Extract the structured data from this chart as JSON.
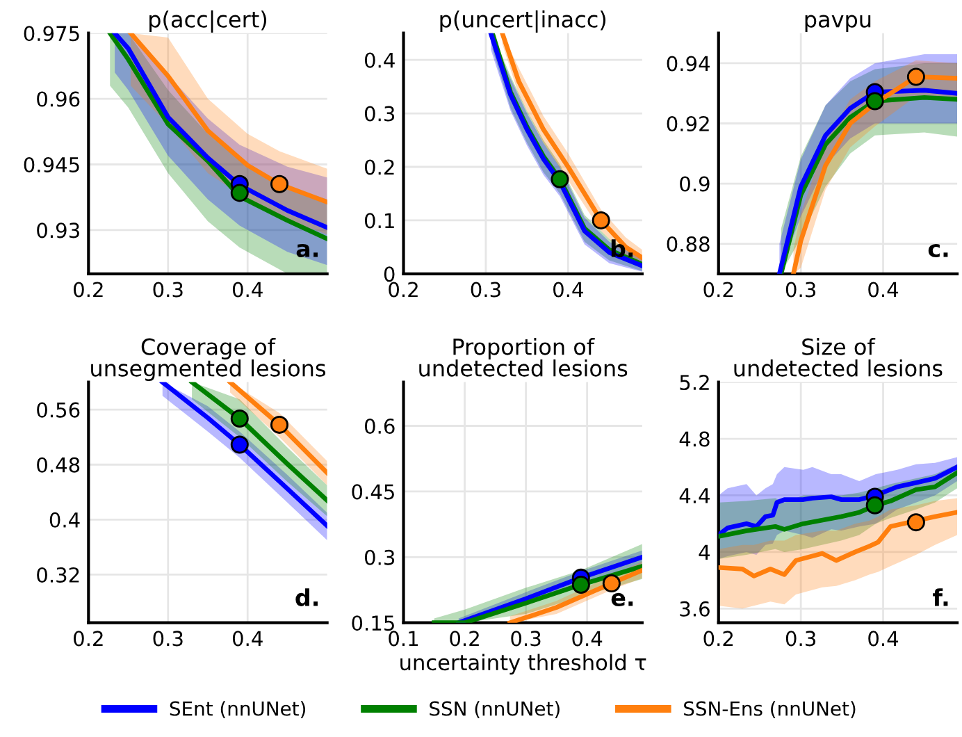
{
  "chart_data": [
    {
      "type": "line",
      "title": "p(acc|cert)",
      "xlim": [
        0.2,
        0.5
      ],
      "ylim": [
        0.92,
        0.975
      ],
      "xticks": [
        0.2,
        0.3,
        0.4
      ],
      "yticks": [
        0.93,
        0.945,
        0.96,
        0.975
      ],
      "grid": true,
      "annotations": [
        "a."
      ],
      "series": [
        {
          "color": "#008000",
          "x": [
            0.227,
            0.25,
            0.3,
            0.35,
            0.39,
            0.45,
            0.5
          ],
          "values": [
            0.975,
            0.969,
            0.9542,
            0.9458,
            0.9377,
            0.9322,
            0.928
          ],
          "lower": [
            0.963,
            0.958,
            0.943,
            0.932,
            0.926,
            0.92,
            0.92
          ],
          "upper": [
            0.975,
            0.975,
            0.962,
            0.952,
            0.946,
            0.94,
            0.937
          ]
        },
        {
          "color": "#0000ff",
          "x": [
            0.233,
            0.25,
            0.3,
            0.35,
            0.39,
            0.45,
            0.5
          ],
          "values": [
            0.975,
            0.9715,
            0.9558,
            0.9465,
            0.9403,
            0.9345,
            0.9306
          ],
          "lower": [
            0.966,
            0.962,
            0.947,
            0.937,
            0.931,
            0.925,
            0.922
          ],
          "upper": [
            0.975,
            0.975,
            0.9655,
            0.9555,
            0.9495,
            0.9445,
            0.942
          ]
        },
        {
          "color": "#ff7f0e",
          "x": [
            0.253,
            0.3,
            0.35,
            0.4,
            0.44,
            0.5
          ],
          "values": [
            0.975,
            0.9652,
            0.9527,
            0.9448,
            0.9405,
            0.9364
          ],
          "lower": [
            0.963,
            0.954,
            0.943,
            0.937,
            0.933,
            0.929
          ],
          "upper": [
            0.975,
            0.974,
            0.96,
            0.952,
            0.948,
            0.944
          ]
        },
        {
          "type": "scatter",
          "marker": "circle",
          "color": "#0000ff",
          "x": [
            0.39
          ],
          "values": [
            0.9405
          ]
        },
        {
          "type": "scatter",
          "marker": "circle",
          "color": "#008000",
          "x": [
            0.39
          ],
          "values": [
            0.9385
          ]
        },
        {
          "type": "scatter",
          "marker": "circle",
          "color": "#ff7f0e",
          "x": [
            0.44
          ],
          "values": [
            0.9405
          ]
        }
      ]
    },
    {
      "type": "line",
      "title": "p(uncert|inacc)",
      "xlim": [
        0.2,
        0.49
      ],
      "ylim": [
        0,
        0.45
      ],
      "xticks": [
        0.2,
        0.3,
        0.4
      ],
      "yticks": [
        0,
        0.1,
        0.2,
        0.3,
        0.4
      ],
      "grid": true,
      "annotations": [
        "b."
      ],
      "series": [
        {
          "color": "#008000",
          "x": [
            0.308,
            0.33,
            0.35,
            0.37,
            0.39,
            0.42,
            0.45,
            0.49
          ],
          "values": [
            0.45,
            0.34,
            0.275,
            0.22,
            0.177,
            0.085,
            0.045,
            0.018
          ],
          "lower": [
            0.42,
            0.31,
            0.245,
            0.19,
            0.15,
            0.06,
            0.025,
            0.005
          ],
          "upper": [
            0.45,
            0.37,
            0.305,
            0.25,
            0.205,
            0.11,
            0.065,
            0.03
          ]
        },
        {
          "color": "#0000ff",
          "x": [
            0.306,
            0.33,
            0.35,
            0.37,
            0.39,
            0.42,
            0.45,
            0.49
          ],
          "values": [
            0.45,
            0.335,
            0.27,
            0.215,
            0.172,
            0.08,
            0.04,
            0.015
          ],
          "lower": [
            0.42,
            0.305,
            0.24,
            0.185,
            0.145,
            0.055,
            0.02,
            0.004
          ],
          "upper": [
            0.45,
            0.365,
            0.3,
            0.245,
            0.2,
            0.105,
            0.06,
            0.028
          ]
        },
        {
          "color": "#ff7f0e",
          "x": [
            0.32,
            0.34,
            0.37,
            0.4,
            0.44,
            0.47,
            0.49
          ],
          "values": [
            0.45,
            0.36,
            0.27,
            0.2,
            0.1,
            0.05,
            0.03
          ],
          "lower": [
            0.43,
            0.335,
            0.245,
            0.175,
            0.08,
            0.035,
            0.018
          ],
          "upper": [
            0.45,
            0.385,
            0.295,
            0.225,
            0.12,
            0.068,
            0.045
          ]
        },
        {
          "type": "scatter",
          "marker": "circle",
          "color": "#008000",
          "x": [
            0.39
          ],
          "values": [
            0.177
          ]
        },
        {
          "type": "scatter",
          "marker": "circle",
          "color": "#ff7f0e",
          "x": [
            0.44
          ],
          "values": [
            0.1
          ]
        }
      ]
    },
    {
      "type": "line",
      "title": "pavpu",
      "xlim": [
        0.2,
        0.49
      ],
      "ylim": [
        0.87,
        0.95
      ],
      "xticks": [
        0.2,
        0.3,
        0.4
      ],
      "yticks": [
        0.88,
        0.9,
        0.92,
        0.94
      ],
      "grid": true,
      "annotations": [
        "c."
      ],
      "series": [
        {
          "color": "#008000",
          "x": [
            0.276,
            0.3,
            0.33,
            0.36,
            0.39,
            0.45,
            0.49
          ],
          "values": [
            0.87,
            0.8962,
            0.913,
            0.922,
            0.9274,
            0.9286,
            0.928
          ],
          "lower": [
            0.87,
            0.882,
            0.899,
            0.91,
            0.916,
            0.917,
            0.9156
          ],
          "upper": [
            0.885,
            0.909,
            0.926,
            0.934,
            0.938,
            0.94,
            0.94
          ]
        },
        {
          "color": "#0000ff",
          "x": [
            0.274,
            0.3,
            0.33,
            0.36,
            0.39,
            0.45,
            0.49
          ],
          "values": [
            0.87,
            0.899,
            0.916,
            0.925,
            0.9304,
            0.931,
            0.93
          ],
          "lower": [
            0.87,
            0.889,
            0.906,
            0.915,
            0.92,
            0.92,
            0.92
          ],
          "upper": [
            0.88,
            0.908,
            0.926,
            0.935,
            0.94,
            0.943,
            0.943
          ]
        },
        {
          "color": "#ff7f0e",
          "x": [
            0.291,
            0.3,
            0.33,
            0.36,
            0.39,
            0.44,
            0.49
          ],
          "values": [
            0.87,
            0.881,
            0.906,
            0.92,
            0.9266,
            0.9355,
            0.935
          ],
          "lower": [
            0.87,
            0.872,
            0.898,
            0.912,
            0.919,
            0.929,
            0.928
          ],
          "upper": [
            0.878,
            0.89,
            0.914,
            0.928,
            0.934,
            0.941,
            0.94
          ]
        },
        {
          "type": "scatter",
          "marker": "circle",
          "color": "#0000ff",
          "x": [
            0.39
          ],
          "values": [
            0.9304
          ]
        },
        {
          "type": "scatter",
          "marker": "circle",
          "color": "#008000",
          "x": [
            0.39
          ],
          "values": [
            0.9274
          ]
        },
        {
          "type": "scatter",
          "marker": "circle",
          "color": "#ff7f0e",
          "x": [
            0.44
          ],
          "values": [
            0.9355
          ]
        }
      ]
    },
    {
      "type": "line",
      "title": "Coverage of\nunsegmented lesions",
      "xlim": [
        0.2,
        0.5
      ],
      "ylim": [
        0.25,
        0.6
      ],
      "xticks": [
        0.2,
        0.3,
        0.4
      ],
      "yticks": [
        0.32,
        0.4,
        0.48,
        0.56
      ],
      "grid": true,
      "annotations": [
        "d."
      ],
      "series": [
        {
          "color": "#0000ff",
          "x": [
            0.293,
            0.35,
            0.39,
            0.45,
            0.5
          ],
          "values": [
            0.6,
            0.548,
            0.509,
            0.445,
            0.391
          ],
          "lower": [
            0.58,
            0.528,
            0.49,
            0.425,
            0.37
          ],
          "upper": [
            0.6,
            0.565,
            0.528,
            0.465,
            0.41
          ]
        },
        {
          "color": "#008000",
          "x": [
            0.33,
            0.39,
            0.45,
            0.5
          ],
          "values": [
            0.6,
            0.547,
            0.481,
            0.428
          ],
          "lower": [
            0.575,
            0.52,
            0.455,
            0.405
          ],
          "upper": [
            0.6,
            0.575,
            0.505,
            0.45
          ]
        },
        {
          "color": "#ff7f0e",
          "x": [
            0.378,
            0.44,
            0.5
          ],
          "values": [
            0.6,
            0.538,
            0.468
          ],
          "lower": [
            0.585,
            0.52,
            0.45
          ],
          "upper": [
            0.6,
            0.555,
            0.485
          ]
        },
        {
          "type": "scatter",
          "marker": "circle",
          "color": "#008000",
          "x": [
            0.39
          ],
          "values": [
            0.547
          ]
        },
        {
          "type": "scatter",
          "marker": "circle",
          "color": "#0000ff",
          "x": [
            0.39
          ],
          "values": [
            0.509
          ]
        },
        {
          "type": "scatter",
          "marker": "circle",
          "color": "#ff7f0e",
          "x": [
            0.44
          ],
          "values": [
            0.538
          ]
        }
      ]
    },
    {
      "type": "line",
      "title": "Proportion of\nundetected lesions",
      "xlabel": "uncertainty threshold τ",
      "xlim": [
        0.1,
        0.49
      ],
      "ylim": [
        0.15,
        0.7
      ],
      "xticks": [
        0.1,
        0.2,
        0.3,
        0.4
      ],
      "yticks": [
        0.15,
        0.3,
        0.45,
        0.6
      ],
      "grid": true,
      "legend": "bottom",
      "annotations": [
        "e."
      ],
      "series": [
        {
          "name": "SEnt (nnUNet)",
          "color": "#0000ff",
          "x": [
            0.19,
            0.3,
            0.39,
            0.49
          ],
          "values": [
            0.15,
            0.205,
            0.253,
            0.3
          ],
          "lower": [
            0.15,
            0.19,
            0.237,
            0.283
          ],
          "upper": [
            0.16,
            0.22,
            0.268,
            0.315
          ]
        },
        {
          "name": "SSN (nnUNet)",
          "color": "#008000",
          "x": [
            0.15,
            0.2,
            0.3,
            0.39,
            0.49
          ],
          "values": [
            0.15,
            0.15,
            0.195,
            0.237,
            0.279
          ],
          "lower": [
            0.15,
            0.15,
            0.17,
            0.21,
            0.25
          ],
          "upper": [
            0.16,
            0.18,
            0.23,
            0.27,
            0.33
          ]
        },
        {
          "name": "SSN-Ens (nnUNet)",
          "color": "#ff7f0e",
          "x": [
            0.274,
            0.35,
            0.44,
            0.49
          ],
          "values": [
            0.15,
            0.185,
            0.24,
            0.27
          ],
          "lower": [
            0.15,
            0.17,
            0.225,
            0.252
          ],
          "upper": [
            0.165,
            0.2,
            0.258,
            0.29
          ]
        },
        {
          "type": "scatter",
          "marker": "circle",
          "color": "#0000ff",
          "x": [
            0.39
          ],
          "values": [
            0.253
          ]
        },
        {
          "type": "scatter",
          "marker": "circle",
          "color": "#008000",
          "x": [
            0.39
          ],
          "values": [
            0.237
          ]
        },
        {
          "type": "scatter",
          "marker": "circle",
          "color": "#ff7f0e",
          "x": [
            0.44
          ],
          "values": [
            0.24
          ]
        }
      ]
    },
    {
      "type": "line",
      "title": "Size of\nundetected lesions",
      "xlim": [
        0.2,
        0.49
      ],
      "ylim": [
        3.5,
        5.2
      ],
      "xticks": [
        0.2,
        0.3,
        0.4
      ],
      "yticks": [
        3.6,
        4,
        4.4,
        4.8,
        5.2
      ],
      "grid": true,
      "annotations": [
        "f."
      ],
      "series": [
        {
          "color": "#0000ff",
          "x": [
            0.2,
            0.211,
            0.234,
            0.246,
            0.257,
            0.266,
            0.271,
            0.28,
            0.303,
            0.314,
            0.337,
            0.349,
            0.371,
            0.391,
            0.417,
            0.44,
            0.463,
            0.49
          ],
          "values": [
            4.12,
            4.17,
            4.2,
            4.18,
            4.25,
            4.26,
            4.35,
            4.37,
            4.37,
            4.38,
            4.39,
            4.37,
            4.37,
            4.4,
            4.46,
            4.49,
            4.52,
            4.6
          ],
          "lower": [
            3.95,
            3.97,
            4.0,
            3.98,
            4.05,
            4.06,
            4.12,
            4.15,
            4.12,
            4.1,
            4.16,
            4.15,
            4.18,
            4.2,
            4.3,
            4.35,
            4.4,
            4.5
          ],
          "upper": [
            4.4,
            4.45,
            4.48,
            4.4,
            4.45,
            4.48,
            4.55,
            4.6,
            4.58,
            4.6,
            4.55,
            4.55,
            4.5,
            4.55,
            4.58,
            4.62,
            4.63,
            4.67
          ]
        },
        {
          "color": "#008000",
          "x": [
            0.2,
            0.234,
            0.269,
            0.28,
            0.303,
            0.349,
            0.371,
            0.391,
            0.409,
            0.44,
            0.463,
            0.49
          ],
          "values": [
            4.11,
            4.15,
            4.18,
            4.16,
            4.2,
            4.25,
            4.28,
            4.33,
            4.36,
            4.44,
            4.46,
            4.56
          ],
          "lower": [
            3.95,
            3.98,
            4.02,
            4.0,
            4.02,
            4.08,
            4.12,
            4.2,
            4.24,
            4.3,
            4.35,
            4.45
          ],
          "upper": [
            4.35,
            4.36,
            4.38,
            4.35,
            4.4,
            4.4,
            4.42,
            4.45,
            4.48,
            4.52,
            4.55,
            4.62
          ]
        },
        {
          "color": "#ff7f0e",
          "x": [
            0.2,
            0.229,
            0.243,
            0.263,
            0.28,
            0.294,
            0.326,
            0.343,
            0.366,
            0.383,
            0.394,
            0.409,
            0.44,
            0.463,
            0.49
          ],
          "values": [
            3.89,
            3.88,
            3.83,
            3.88,
            3.84,
            3.94,
            3.99,
            3.94,
            4.0,
            4.04,
            4.07,
            4.18,
            4.22,
            4.25,
            4.28
          ],
          "lower": [
            3.62,
            3.6,
            3.62,
            3.65,
            3.63,
            3.7,
            3.75,
            3.76,
            3.8,
            3.84,
            3.86,
            3.9,
            3.98,
            4.05,
            4.12
          ],
          "upper": [
            4.02,
            4.05,
            4.05,
            4.08,
            4.08,
            4.12,
            4.15,
            4.15,
            4.2,
            4.22,
            4.25,
            4.3,
            4.33,
            4.36,
            4.38
          ]
        },
        {
          "type": "scatter",
          "marker": "circle",
          "color": "#0000ff",
          "x": [
            0.39
          ],
          "values": [
            4.39
          ]
        },
        {
          "type": "scatter",
          "marker": "circle",
          "color": "#008000",
          "x": [
            0.39
          ],
          "values": [
            4.33
          ]
        },
        {
          "type": "scatter",
          "marker": "circle",
          "color": "#ff7f0e",
          "x": [
            0.44
          ],
          "values": [
            4.21
          ]
        }
      ]
    }
  ]
}
